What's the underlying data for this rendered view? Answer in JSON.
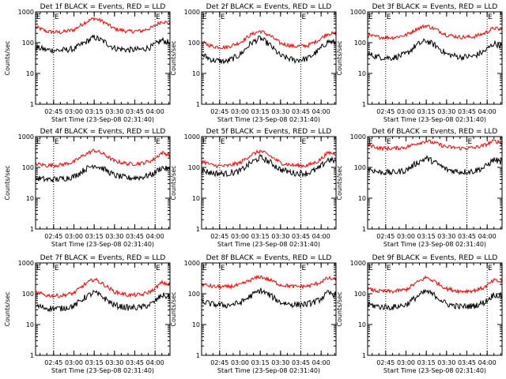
{
  "chart_data": {
    "type": "line",
    "layout": "3x3 grid of panels",
    "scale_y": "log",
    "ylim": [
      1,
      1000
    ],
    "y_ticks": [
      "1",
      "10",
      "100",
      "1000"
    ],
    "ylabel": "Counts/sec",
    "xlabel": "Start Time (23-Sep-08 02:31:40)",
    "time_range": [
      "02:31:40",
      "04:11:00"
    ],
    "series_colors": {
      "events": "#000000",
      "lld": "#ff0000"
    },
    "panel_marker": "E",
    "panels": [
      {
        "title": "Det 1f BLACK = Events, RED = LLD",
        "x_ticks": [
          "02:45",
          "03:00",
          "03:15",
          "03:30",
          "03:45",
          "04:00"
        ],
        "dotted_lines": [
          "02:45",
          "04:00"
        ],
        "events": {
          "x": [
            "02:32",
            "02:40",
            "02:50",
            "03:00",
            "03:08",
            "03:15",
            "03:22",
            "03:30",
            "03:40",
            "03:50",
            "03:58",
            "04:05",
            "04:10"
          ],
          "y": [
            70,
            58,
            56,
            62,
            100,
            150,
            110,
            66,
            58,
            60,
            75,
            120,
            100
          ]
        },
        "lld": {
          "x": [
            "02:32",
            "02:40",
            "02:50",
            "03:00",
            "03:08",
            "03:15",
            "03:22",
            "03:30",
            "03:40",
            "03:50",
            "03:58",
            "04:05",
            "04:10"
          ],
          "y": [
            320,
            230,
            215,
            260,
            450,
            620,
            470,
            280,
            230,
            240,
            310,
            500,
            420
          ]
        }
      },
      {
        "title": "Det 2f BLACK = Events, RED = LLD",
        "x_ticks": [
          "02:45",
          "03:00",
          "03:15",
          "03:30",
          "03:45",
          "04:00"
        ],
        "dotted_lines": [
          "02:45",
          "03:45"
        ],
        "events": {
          "x": [
            "02:32",
            "02:40",
            "02:50",
            "03:00",
            "03:08",
            "03:15",
            "03:22",
            "03:30",
            "03:40",
            "03:50",
            "03:58",
            "04:05",
            "04:10"
          ],
          "y": [
            40,
            27,
            24,
            40,
            95,
            140,
            85,
            37,
            27,
            30,
            55,
            110,
            100
          ]
        },
        "lld": {
          "x": [
            "02:32",
            "02:40",
            "02:50",
            "03:00",
            "03:08",
            "03:15",
            "03:22",
            "03:30",
            "03:40",
            "03:50",
            "03:58",
            "04:05",
            "04:10"
          ],
          "y": [
            100,
            75,
            70,
            100,
            180,
            240,
            170,
            95,
            75,
            80,
            120,
            200,
            190
          ]
        }
      },
      {
        "title": "Det 3f BLACK = Events, RED = LLD",
        "x_ticks": [
          "02:45",
          "03:00",
          "03:15",
          "03:30",
          "03:45",
          "04:00"
        ],
        "dotted_lines": [
          "02:45",
          "04:00"
        ],
        "events": {
          "x": [
            "02:32",
            "02:40",
            "02:50",
            "03:00",
            "03:08",
            "03:15",
            "03:22",
            "03:30",
            "03:40",
            "03:50",
            "03:58",
            "04:05",
            "04:10"
          ],
          "y": [
            42,
            34,
            32,
            42,
            85,
            115,
            80,
            42,
            34,
            36,
            52,
            95,
            80
          ]
        },
        "lld": {
          "x": [
            "02:32",
            "02:40",
            "02:50",
            "03:00",
            "03:08",
            "03:15",
            "03:22",
            "03:30",
            "03:40",
            "03:50",
            "03:58",
            "04:05",
            "04:10"
          ],
          "y": [
            170,
            150,
            145,
            175,
            280,
            360,
            270,
            180,
            150,
            155,
            200,
            300,
            260
          ]
        }
      },
      {
        "title": "Det 4f BLACK = Events, RED = LLD",
        "x_ticks": [
          "02:45",
          "03:00",
          "03:15",
          "03:30",
          "03:45",
          "04:00"
        ],
        "dotted_lines": [
          "02:45",
          "04:00"
        ],
        "events": {
          "x": [
            "02:32",
            "02:40",
            "02:50",
            "03:00",
            "03:08",
            "03:15",
            "03:22",
            "03:30",
            "03:40",
            "03:50",
            "03:58",
            "04:05",
            "04:10"
          ],
          "y": [
            45,
            40,
            42,
            50,
            85,
            120,
            90,
            55,
            45,
            48,
            60,
            100,
            85
          ]
        },
        "lld": {
          "x": [
            "02:32",
            "02:40",
            "02:50",
            "03:00",
            "03:08",
            "03:15",
            "03:22",
            "03:30",
            "03:40",
            "03:50",
            "03:58",
            "04:05",
            "04:10"
          ],
          "y": [
            130,
            115,
            120,
            150,
            260,
            360,
            270,
            160,
            130,
            135,
            170,
            300,
            260
          ]
        }
      },
      {
        "title": "Det 5f BLACK = Events, RED = LLD",
        "x_ticks": [
          "02:45",
          "03:00",
          "03:15",
          "03:30",
          "03:45",
          "04:00"
        ],
        "dotted_lines": [
          "02:45",
          "03:45"
        ],
        "events": {
          "x": [
            "02:32",
            "02:40",
            "02:50",
            "03:00",
            "03:08",
            "03:15",
            "03:22",
            "03:30",
            "03:40",
            "03:50",
            "03:58",
            "04:05",
            "04:10"
          ],
          "y": [
            80,
            65,
            62,
            75,
            140,
            210,
            150,
            85,
            65,
            65,
            90,
            180,
            160
          ]
        },
        "lld": {
          "x": [
            "02:32",
            "02:40",
            "02:50",
            "03:00",
            "03:08",
            "03:15",
            "03:22",
            "03:30",
            "03:40",
            "03:50",
            "03:58",
            "04:05",
            "04:10"
          ],
          "y": [
            160,
            115,
            110,
            140,
            250,
            340,
            240,
            140,
            115,
            115,
            160,
            300,
            280
          ]
        }
      },
      {
        "title": "Det 6f BLACK = Events, RED = LLD",
        "x_ticks": [
          "02:45",
          "03:00",
          "03:15",
          "03:30",
          "03:45",
          "04:00"
        ],
        "dotted_lines": [
          "02:45",
          "03:45"
        ],
        "events": {
          "x": [
            "02:32",
            "02:40",
            "02:50",
            "03:00",
            "03:08",
            "03:15",
            "03:22",
            "03:30",
            "03:40",
            "03:50",
            "03:58",
            "04:05",
            "04:10"
          ],
          "y": [
            90,
            70,
            68,
            80,
            140,
            200,
            140,
            85,
            72,
            75,
            100,
            180,
            150
          ]
        },
        "lld": {
          "x": [
            "02:32",
            "02:40",
            "02:50",
            "03:00",
            "03:08",
            "03:15",
            "03:22",
            "03:30",
            "03:40",
            "03:50",
            "03:58",
            "04:05",
            "04:10"
          ],
          "y": [
            560,
            420,
            410,
            450,
            600,
            720,
            600,
            460,
            420,
            430,
            520,
            720,
            640
          ]
        }
      },
      {
        "title": "Det 7f BLACK = Events, RED = LLD",
        "x_ticks": [
          "02:45",
          "03:00",
          "03:15",
          "03:30",
          "03:45",
          "04:00"
        ],
        "dotted_lines": [
          "02:45",
          "04:00"
        ],
        "events": {
          "x": [
            "02:32",
            "02:40",
            "02:50",
            "03:00",
            "03:08",
            "03:15",
            "03:22",
            "03:30",
            "03:40",
            "03:50",
            "03:58",
            "04:05",
            "04:10"
          ],
          "y": [
            40,
            34,
            33,
            40,
            75,
            110,
            75,
            42,
            35,
            36,
            48,
            90,
            80
          ]
        },
        "lld": {
          "x": [
            "02:32",
            "02:40",
            "02:50",
            "03:00",
            "03:08",
            "03:15",
            "03:22",
            "03:30",
            "03:40",
            "03:50",
            "03:58",
            "04:05",
            "04:10"
          ],
          "y": [
            110,
            88,
            85,
            105,
            200,
            300,
            200,
            115,
            90,
            92,
            125,
            230,
            200
          ]
        }
      },
      {
        "title": "Det 8f BLACK = Events, RED = LLD",
        "x_ticks": [
          "02:45",
          "03:00",
          "03:15",
          "03:30",
          "03:45",
          "04:00"
        ],
        "dotted_lines": [
          "02:45",
          "03:45"
        ],
        "events": {
          "x": [
            "02:32",
            "02:40",
            "02:50",
            "03:00",
            "03:08",
            "03:15",
            "03:22",
            "03:30",
            "03:40",
            "03:50",
            "03:58",
            "04:05",
            "04:10"
          ],
          "y": [
            55,
            45,
            42,
            50,
            85,
            130,
            90,
            52,
            44,
            46,
            60,
            105,
            95
          ]
        },
        "lld": {
          "x": [
            "02:32",
            "02:40",
            "02:50",
            "03:00",
            "03:08",
            "03:15",
            "03:22",
            "03:30",
            "03:40",
            "03:50",
            "03:58",
            "04:05",
            "04:10"
          ],
          "y": [
            200,
            170,
            165,
            190,
            280,
            360,
            280,
            195,
            170,
            175,
            220,
            320,
            290
          ]
        }
      },
      {
        "title": "Det 9f BLACK = Events, RED = LLD",
        "x_ticks": [
          "02:45",
          "03:00",
          "03:15",
          "03:30",
          "03:45",
          "04:00"
        ],
        "dotted_lines": [
          "02:45",
          "04:00"
        ],
        "events": {
          "x": [
            "02:32",
            "02:40",
            "02:50",
            "03:00",
            "03:08",
            "03:15",
            "03:22",
            "03:30",
            "03:40",
            "03:50",
            "03:58",
            "04:05",
            "04:10"
          ],
          "y": [
            45,
            38,
            36,
            44,
            80,
            120,
            85,
            46,
            38,
            40,
            52,
            95,
            85
          ]
        },
        "lld": {
          "x": [
            "02:32",
            "02:40",
            "02:50",
            "03:00",
            "03:08",
            "03:15",
            "03:22",
            "03:30",
            "03:40",
            "03:50",
            "03:58",
            "04:05",
            "04:10"
          ],
          "y": [
            140,
            120,
            118,
            135,
            230,
            340,
            240,
            145,
            120,
            125,
            160,
            270,
            240
          ]
        }
      }
    ]
  }
}
